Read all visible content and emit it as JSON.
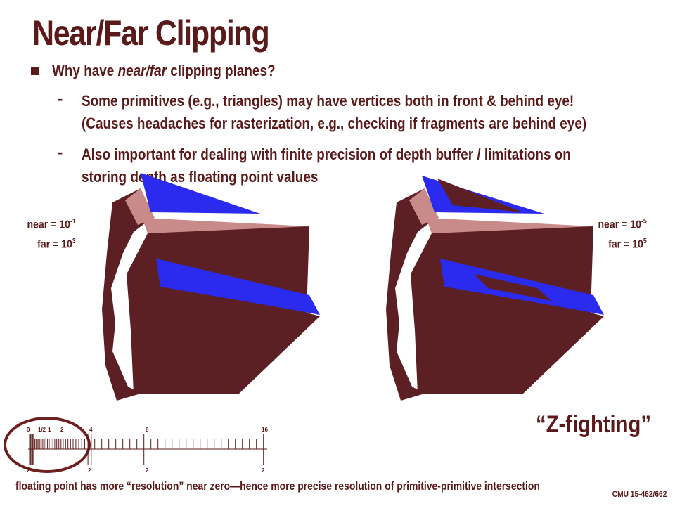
{
  "slide": {
    "title": "Near/Far Clipping",
    "bullet": {
      "before": "Why have ",
      "emph": "near/far",
      "after": " clipping planes?"
    },
    "sub_items": [
      {
        "line1": "Some primitives (e.g., triangles) may have vertices both in front & behind eye!",
        "line2": "(Causes headaches for rasterization, e.g., checking if fragments are behind eye)"
      },
      {
        "line1": "Also important for dealing with finite precision of depth buffer / limitations on",
        "line2": "storing depth as floating point values"
      }
    ],
    "left_label": {
      "near_text": "near = 10",
      "near_exp": "-1",
      "far_text": "far = 10",
      "far_exp": "3"
    },
    "right_label": {
      "near_text": "near = 10",
      "near_exp": "-5",
      "far_text": "far = 10",
      "far_exp": "5"
    },
    "z_fighting": "“Z-fighting”",
    "number_line": {
      "top_labels": [
        "0",
        "1/2",
        "1",
        "2",
        "4",
        "8",
        "16"
      ],
      "bottom_labels": [
        "2",
        "2",
        "2",
        "2"
      ]
    },
    "footer_note": "floating point has more “resolution” near zero—hence more precise resolution of primitive-primitive intersection",
    "course": "CMU 15-462/662"
  },
  "colors": {
    "text": "#5a1a1a",
    "shape_dark": "#5c1f24",
    "shape_light": "#c98a8a",
    "blue": "#2b2bf0",
    "circle": "#6e1f1f"
  }
}
